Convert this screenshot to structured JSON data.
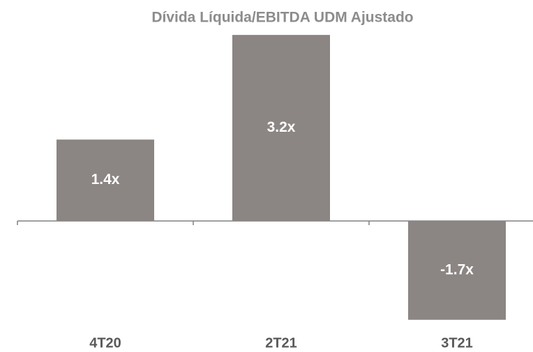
{
  "chart_data": {
    "type": "bar",
    "title": "Dívida Líquida/EBITDA UDM Ajustado",
    "categories": [
      "4T20",
      "2T21",
      "3T21"
    ],
    "values": [
      1.4,
      3.2,
      -1.7
    ],
    "value_labels": [
      "1.4x",
      "3.2x",
      "-1.7x"
    ],
    "color": "#8b8583"
  }
}
